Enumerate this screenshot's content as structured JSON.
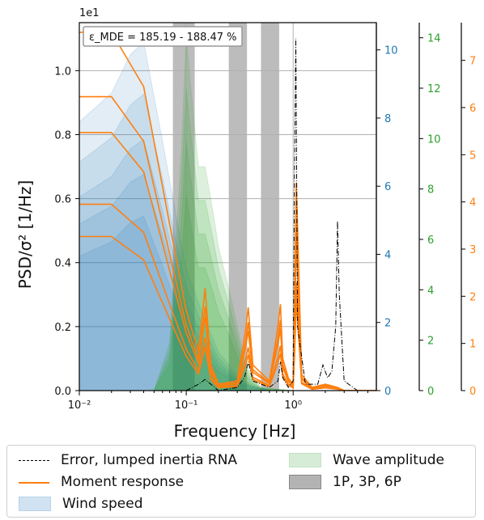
{
  "chart_data": {
    "type": "line",
    "title": "",
    "xlabel": "Frequency [Hz]",
    "ylabel": "PSD/σ² [1/Hz]",
    "x_scale": "log",
    "xlim": [
      0.01,
      6.0
    ],
    "ylim": [
      0,
      1.15
    ],
    "y_offset_label": "1e1",
    "x_tick_labels": [
      "10⁻²",
      "10⁻¹",
      "10⁰"
    ],
    "y_tick_labels": [
      "0.0",
      "0.2",
      "0.4",
      "0.6",
      "0.8",
      "1.0"
    ],
    "grid": true,
    "annotation": "ε_MDE = 185.19 - 188.47 %",
    "secondary_axes": [
      {
        "color": "#1f77b4",
        "ylim": [
          0,
          10.8
        ],
        "tick_labels": [
          "0",
          "2",
          "4",
          "6",
          "8",
          "10"
        ]
      },
      {
        "color": "#2ca02c",
        "ylim": [
          0,
          14.6
        ],
        "tick_labels": [
          "0",
          "2",
          "4",
          "6",
          "8",
          "10",
          "12",
          "14"
        ]
      },
      {
        "color": "#ff7f0e",
        "ylim": [
          0,
          7.8
        ],
        "tick_labels": [
          "0",
          "1",
          "2",
          "3",
          "4",
          "5",
          "6",
          "7"
        ]
      }
    ],
    "shaded_bands": [
      {
        "x0": 0.075,
        "x1": 0.12
      },
      {
        "x0": 0.25,
        "x1": 0.37
      },
      {
        "x0": 0.5,
        "x1": 0.74
      }
    ],
    "series": [
      {
        "name": "Error, lumped inertia RNA",
        "style": "dashdot",
        "color": "#000000",
        "x": [
          0.01,
          0.1,
          0.13,
          0.15,
          0.17,
          0.2,
          0.3,
          0.35,
          0.38,
          0.42,
          0.6,
          0.72,
          0.76,
          0.8,
          0.9,
          1.0,
          1.03,
          1.06,
          1.1,
          1.3,
          1.7,
          1.9,
          2.1,
          2.3,
          2.5,
          2.6,
          2.7,
          3.0,
          4.0,
          6.0
        ],
        "y": [
          0.0,
          0.0,
          0.02,
          0.035,
          0.02,
          0.0,
          0.01,
          0.04,
          0.09,
          0.03,
          0.01,
          0.03,
          0.09,
          0.04,
          0.01,
          0.03,
          0.7,
          1.1,
          0.2,
          0.02,
          0.02,
          0.08,
          0.04,
          0.06,
          0.2,
          0.53,
          0.3,
          0.03,
          0.0,
          0.0
        ]
      },
      {
        "name": "Moment response",
        "style": "solid",
        "color": "#ff7f0e",
        "x": [
          0.01,
          0.02,
          0.04,
          0.07,
          0.1,
          0.13,
          0.15,
          0.17,
          0.2,
          0.3,
          0.36,
          0.38,
          0.42,
          0.6,
          0.72,
          0.76,
          0.8,
          0.9,
          1.0,
          1.03,
          1.07,
          1.2,
          1.5,
          2.0,
          2.6,
          3.0,
          6.0
        ],
        "y": [
          1.12,
          1.12,
          0.95,
          0.52,
          0.25,
          0.12,
          0.32,
          0.08,
          0.02,
          0.03,
          0.19,
          0.26,
          0.08,
          0.03,
          0.2,
          0.27,
          0.1,
          0.04,
          0.02,
          0.25,
          0.65,
          0.05,
          0.01,
          0.02,
          0.01,
          0.0,
          0.0
        ]
      },
      {
        "name": "Wind speed",
        "style": "fill",
        "color": "#1f77b4",
        "x": [
          0.01,
          0.02,
          0.03,
          0.04,
          0.06,
          0.08,
          0.1,
          0.15,
          0.2,
          0.3,
          0.4,
          0.6,
          1.0,
          6.0
        ],
        "y": [
          0.84,
          0.93,
          1.05,
          1.09,
          0.78,
          0.55,
          0.38,
          0.22,
          0.12,
          0.05,
          0.02,
          0.0,
          0.0,
          0.0
        ]
      },
      {
        "name": "Wave amplitude",
        "style": "fill",
        "color": "#2ca02c",
        "x": [
          0.01,
          0.05,
          0.07,
          0.09,
          0.1,
          0.11,
          0.13,
          0.15,
          0.18,
          0.2,
          0.25,
          0.3,
          0.35,
          0.4,
          0.5,
          1.0,
          6.0
        ],
        "y": [
          0.0,
          0.0,
          0.15,
          0.75,
          1.11,
          0.95,
          0.7,
          0.7,
          0.55,
          0.45,
          0.32,
          0.2,
          0.1,
          0.05,
          0.01,
          0.0,
          0.0
        ]
      },
      {
        "name": "1P, 3P, 6P",
        "style": "band",
        "color": "#a6a6a6",
        "x": [],
        "y": []
      }
    ]
  }
}
